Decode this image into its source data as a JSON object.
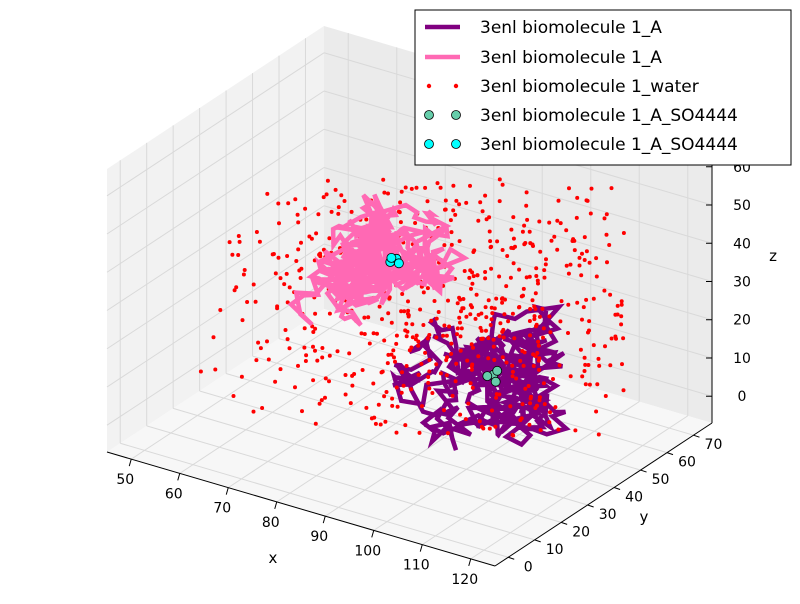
{
  "chart_data": {
    "type": "scatter",
    "projection": "3d",
    "title": "",
    "axes": {
      "x": {
        "label": "x",
        "ticks": [
          50,
          60,
          70,
          80,
          90,
          100,
          110,
          120
        ],
        "range": [
          45,
          125
        ]
      },
      "y": {
        "label": "y",
        "ticks": [
          0,
          10,
          20,
          30,
          40,
          50,
          60,
          70
        ],
        "range": [
          -5,
          77
        ]
      },
      "z": {
        "label": "z",
        "ticks": [
          0,
          10,
          20,
          30,
          40,
          50,
          60
        ],
        "range": [
          -7,
          67
        ]
      }
    },
    "grid": true,
    "legend_position": "top-right",
    "series": [
      {
        "name": "3enl biomolecule 1_A",
        "kind": "line",
        "color": "#800080"
      },
      {
        "name": "3enl biomolecule 1_A",
        "kind": "line",
        "color": "#ff69b4"
      },
      {
        "name": "3enl biomolecule 1_water",
        "kind": "points",
        "color": "#ff0000"
      },
      {
        "name": "3enl biomolecule 1_A_SO4444",
        "kind": "markers",
        "color": "#66cdaa",
        "points": [
          [
            104.5,
            32.0,
            18.5
          ],
          [
            103.5,
            31.5,
            18.0
          ],
          [
            105.0,
            32.5,
            19.5
          ],
          [
            105.5,
            31.0,
            17.5
          ]
        ]
      },
      {
        "name": "3enl biomolecule 1_A_SO4444",
        "kind": "markers",
        "color": "#00ffff",
        "points": [
          [
            74.5,
            48.0,
            29.5
          ],
          [
            75.5,
            48.5,
            30.5
          ],
          [
            75.0,
            47.5,
            31.0
          ],
          [
            76.0,
            48.5,
            29.5
          ]
        ]
      }
    ]
  }
}
